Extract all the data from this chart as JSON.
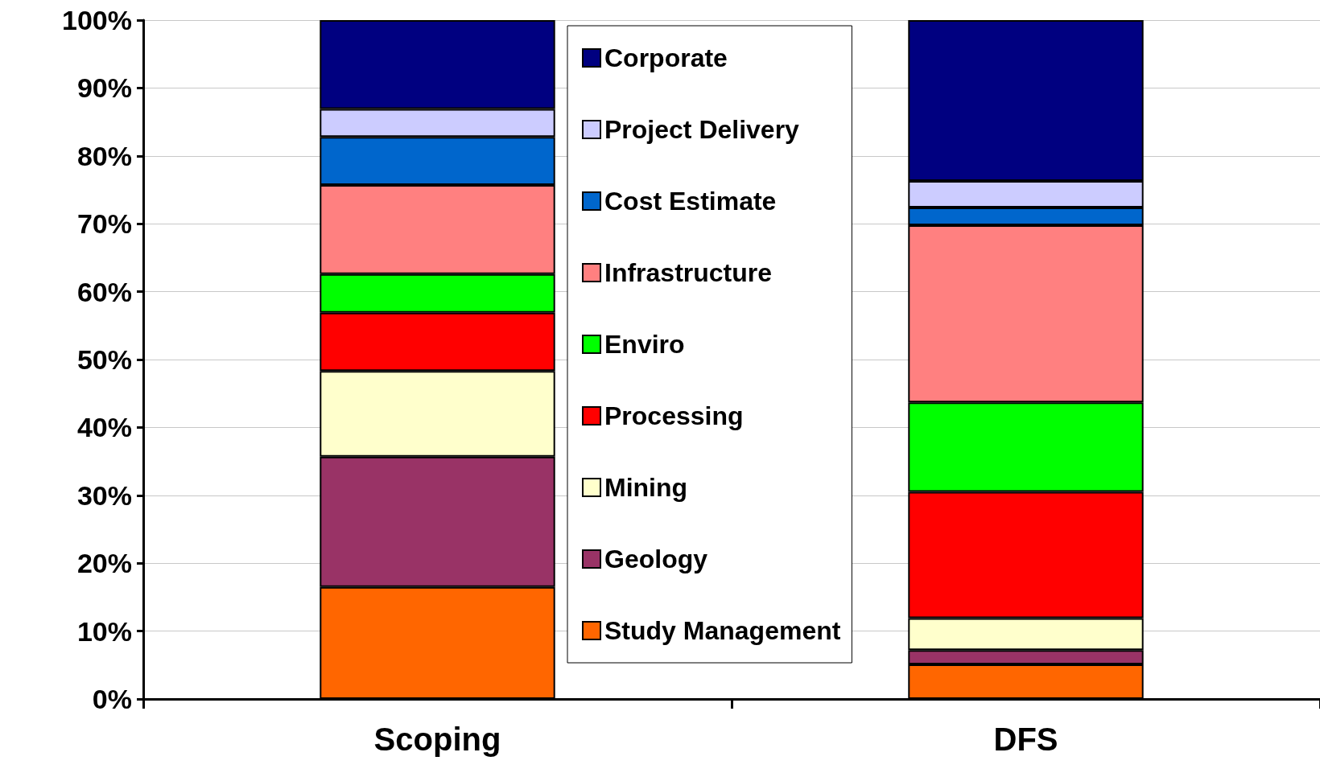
{
  "chart_data": {
    "type": "bar",
    "stacked": true,
    "categories": [
      "Scoping",
      "DFS"
    ],
    "series": [
      {
        "name": "Study Management",
        "color": "#ff6600",
        "values": [
          16.5,
          5.1
        ]
      },
      {
        "name": "Geology",
        "color": "#993366",
        "values": [
          19.2,
          2.1
        ]
      },
      {
        "name": "Mining",
        "color": "#ffffcc",
        "values": [
          12.6,
          4.7
        ]
      },
      {
        "name": "Processing",
        "color": "#ff0000",
        "values": [
          8.6,
          18.6
        ]
      },
      {
        "name": "Enviro",
        "color": "#00ff00",
        "values": [
          5.7,
          13.2
        ]
      },
      {
        "name": "Infrastructure",
        "color": "#ff8080",
        "values": [
          13.1,
          26.1
        ]
      },
      {
        "name": "Cost Estimate",
        "color": "#0066cc",
        "values": [
          7.1,
          2.6
        ]
      },
      {
        "name": "Project Delivery",
        "color": "#ccccff",
        "values": [
          4.1,
          3.9
        ]
      },
      {
        "name": "Corporate",
        "color": "#000080",
        "values": [
          13.1,
          23.7
        ]
      }
    ],
    "ylim": [
      0,
      100
    ],
    "yticks": [
      {
        "value": 0,
        "label": "0%"
      },
      {
        "value": 10,
        "label": "10%"
      },
      {
        "value": 20,
        "label": "20%"
      },
      {
        "value": 30,
        "label": "30%"
      },
      {
        "value": 40,
        "label": "40%"
      },
      {
        "value": 50,
        "label": "50%"
      },
      {
        "value": 60,
        "label": "60%"
      },
      {
        "value": 70,
        "label": "70%"
      },
      {
        "value": 80,
        "label": "80%"
      },
      {
        "value": 90,
        "label": "90%"
      },
      {
        "value": 100,
        "label": "100%"
      }
    ],
    "grid": "y",
    "legend": "top"
  }
}
